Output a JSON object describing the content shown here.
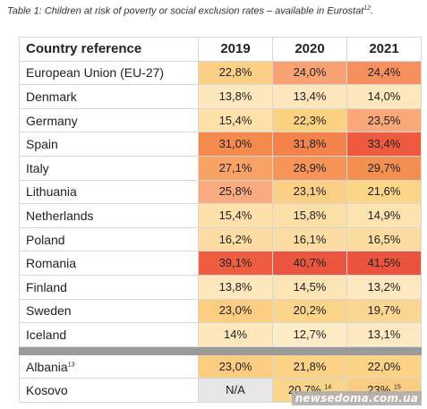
{
  "caption": {
    "text": "Table 1: Children at risk of poverty or social exclusion rates – available in Eurostat",
    "ref": "12",
    "suffix": "."
  },
  "table": {
    "headers": [
      "Country reference",
      "2019",
      "2020",
      "2021"
    ],
    "rows": [
      {
        "country": "European Union (EU-27)",
        "values": [
          "22,8%",
          "24,0%",
          "24,4%"
        ],
        "colors": [
          "#fbcf86",
          "#f9a375",
          "#f7905f"
        ]
      },
      {
        "country": "Denmark",
        "values": [
          "13,8%",
          "13,4%",
          "14,0%"
        ],
        "colors": [
          "#fde7bd",
          "#fde6bb",
          "#fde8bd"
        ]
      },
      {
        "country": "Germany",
        "values": [
          "15,4%",
          "22,3%",
          "23,5%"
        ],
        "colors": [
          "#fde0aa",
          "#fbd27f",
          "#f9a877"
        ]
      },
      {
        "country": "Spain",
        "values": [
          "31,0%",
          "31,8%",
          "33,4%"
        ],
        "colors": [
          "#f48a4d",
          "#f3834b",
          "#ee5a3f"
        ]
      },
      {
        "country": "Italy",
        "values": [
          "27,1%",
          "28,9%",
          "29,7%"
        ],
        "colors": [
          "#f8a266",
          "#f59456",
          "#f48f52"
        ]
      },
      {
        "country": "Lithuania",
        "values": [
          "25,8%",
          "23,1%",
          "21,6%"
        ],
        "colors": [
          "#f9ab80",
          "#fbcf86",
          "#fbd689"
        ]
      },
      {
        "country": "Netherlands",
        "values": [
          "15,4%",
          "15,8%",
          "14,9%"
        ],
        "colors": [
          "#fde0aa",
          "#fcdfa7",
          "#fde3b0"
        ]
      },
      {
        "country": "Poland",
        "values": [
          "16,2%",
          "16,1%",
          "16,5%"
        ],
        "colors": [
          "#fcdca3",
          "#fcdca3",
          "#fcdba0"
        ]
      },
      {
        "country": "Romania",
        "values": [
          "39,1%",
          "40,7%",
          "41,5%"
        ],
        "colors": [
          "#ee5d40",
          "#ec553d",
          "#eb533c"
        ]
      },
      {
        "country": "Finland",
        "values": [
          "13,8%",
          "14,5%",
          "13,2%"
        ],
        "colors": [
          "#fde7bd",
          "#fde4b4",
          "#fde8bf"
        ]
      },
      {
        "country": "Sweden",
        "values": [
          "23,0%",
          "20,2%",
          "19,7%"
        ],
        "colors": [
          "#fbcd83",
          "#fbd48c",
          "#fbd691"
        ]
      },
      {
        "country": "Iceland",
        "values": [
          "14%",
          "12,7%",
          "13,1%"
        ],
        "colors": [
          "#fde7bb",
          "#feecc6",
          "#fde9c1"
        ]
      }
    ],
    "extra_rows": [
      {
        "country": "Albania",
        "country_ref": "13",
        "values": [
          "23,0%",
          "21,8%",
          "22,0%"
        ],
        "value_refs": [
          "",
          "",
          ""
        ],
        "colors": [
          "#fbcd83",
          "#fbd286",
          "#fbd286"
        ]
      },
      {
        "country": "Kosovo",
        "country_ref": "",
        "values": [
          "N/A",
          "20,7%",
          "23%"
        ],
        "value_refs": [
          "",
          "14",
          "15"
        ],
        "colors": [
          "#e6e6e6",
          "#fbd48c",
          "#fbcd83"
        ]
      }
    ]
  },
  "watermark": "newsedoma.com.ua"
}
